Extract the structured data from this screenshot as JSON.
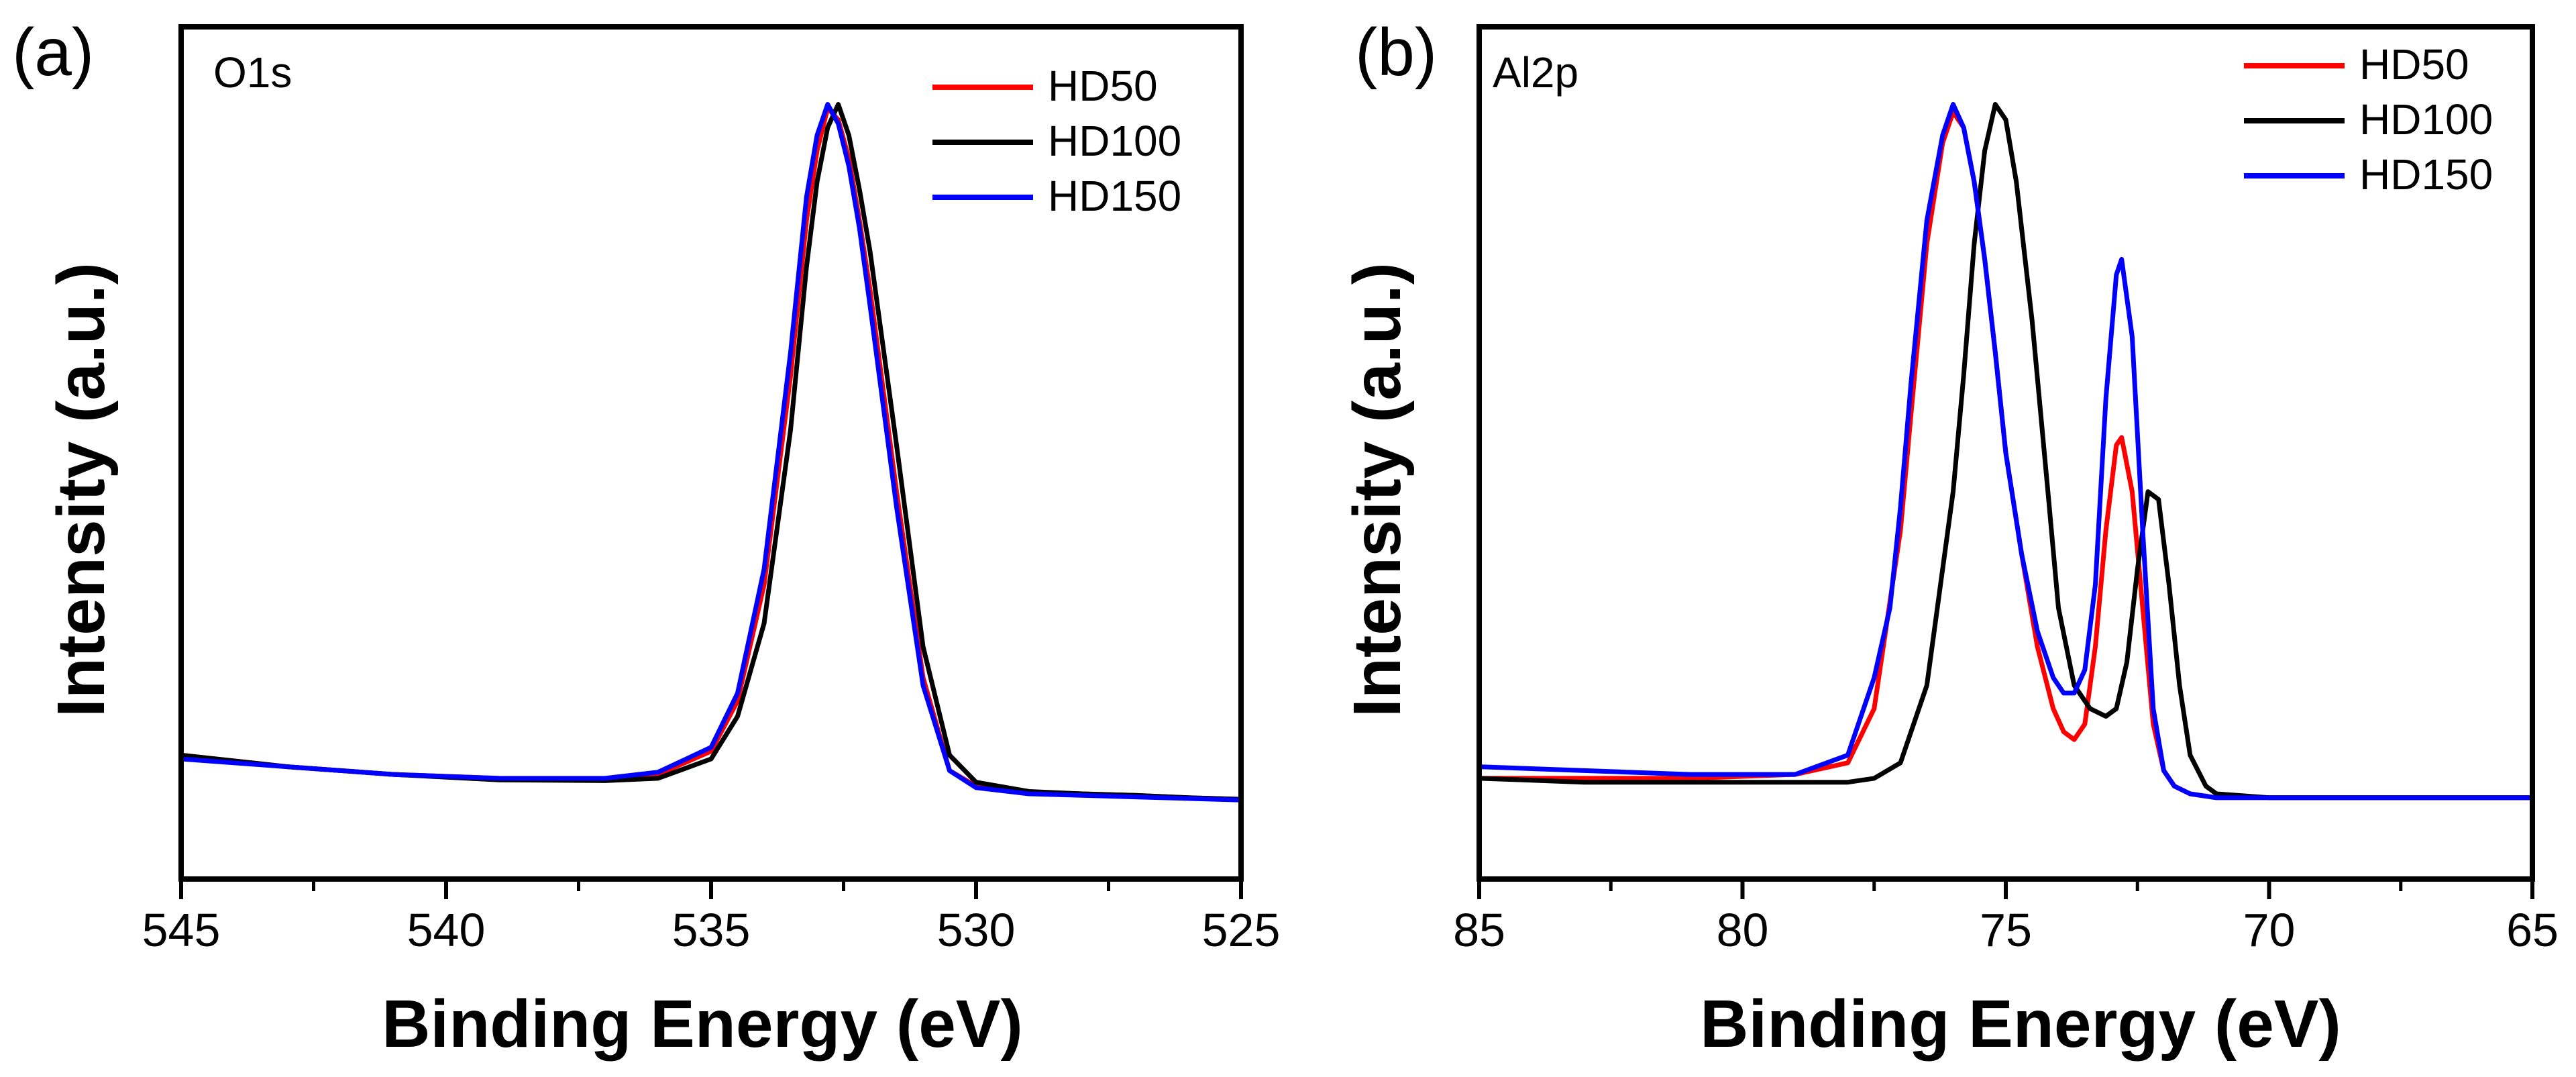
{
  "chart_data": [
    {
      "type": "line",
      "panel_label": "(a)",
      "peak_label": "O1s",
      "xlabel": "Binding Energy (eV)",
      "ylabel": "Intensity (a.u.)",
      "xlim": [
        545,
        525
      ],
      "x_reversed": true,
      "ylim": [
        0,
        1.1
      ],
      "x_ticks": [
        545,
        540,
        535,
        530,
        525
      ],
      "x_tick_labels": [
        "545",
        "540",
        "535",
        "530",
        "525"
      ],
      "y_ticks_shown": false,
      "grid": false,
      "legend_position": "top-right",
      "legend": [
        "HD50",
        "HD100",
        "HD150"
      ],
      "series": [
        {
          "name": "HD50",
          "color": "#ff0000",
          "x": [
            545,
            543,
            541,
            539,
            537,
            536,
            535,
            534.5,
            534,
            533.5,
            533.2,
            533,
            532.8,
            532.6,
            532.4,
            532.2,
            532,
            531.5,
            531,
            530.5,
            530,
            529,
            528,
            527,
            526,
            525
          ],
          "y": [
            0.16,
            0.145,
            0.135,
            0.13,
            0.128,
            0.135,
            0.165,
            0.23,
            0.38,
            0.65,
            0.85,
            0.94,
            0.995,
            0.98,
            0.93,
            0.85,
            0.76,
            0.5,
            0.26,
            0.14,
            0.12,
            0.112,
            0.11,
            0.108,
            0.105,
            0.103
          ]
        },
        {
          "name": "HD100",
          "color": "#000000",
          "x": [
            545,
            543,
            541,
            539,
            537,
            536,
            535,
            534.5,
            534,
            533.5,
            533.2,
            533,
            532.8,
            532.6,
            532.4,
            532.2,
            532,
            531.5,
            531,
            530.5,
            530,
            529,
            528,
            527,
            526,
            525
          ],
          "y": [
            0.16,
            0.145,
            0.135,
            0.128,
            0.127,
            0.13,
            0.155,
            0.21,
            0.33,
            0.58,
            0.79,
            0.9,
            0.97,
            1.0,
            0.96,
            0.89,
            0.81,
            0.56,
            0.3,
            0.16,
            0.125,
            0.113,
            0.11,
            0.108,
            0.105,
            0.103
          ]
        },
        {
          "name": "HD150",
          "color": "#0000ff",
          "x": [
            545,
            543,
            541,
            539,
            537,
            536,
            535,
            534.5,
            534,
            533.5,
            533.2,
            533,
            532.8,
            532.6,
            532.4,
            532.2,
            532,
            531.5,
            531,
            530.5,
            530,
            529,
            528,
            527,
            526,
            525
          ],
          "y": [
            0.155,
            0.145,
            0.135,
            0.13,
            0.13,
            0.138,
            0.17,
            0.24,
            0.4,
            0.68,
            0.88,
            0.96,
            1.0,
            0.975,
            0.92,
            0.84,
            0.74,
            0.48,
            0.25,
            0.14,
            0.118,
            0.11,
            0.108,
            0.106,
            0.104,
            0.102
          ]
        }
      ]
    },
    {
      "type": "line",
      "panel_label": "(b)",
      "peak_label": "Al2p",
      "xlabel": "Binding Energy (eV)",
      "ylabel": "Intensity (a.u.)",
      "xlim": [
        85,
        65
      ],
      "x_reversed": true,
      "ylim": [
        0,
        1.1
      ],
      "x_ticks": [
        85,
        80,
        75,
        70,
        65
      ],
      "x_tick_labels": [
        "85",
        "80",
        "75",
        "70",
        "65"
      ],
      "y_ticks_shown": false,
      "grid": false,
      "legend_position": "top-right",
      "legend": [
        "HD50",
        "HD100",
        "HD150"
      ],
      "series": [
        {
          "name": "HD50",
          "color": "#ff0000",
          "x": [
            85,
            83,
            81,
            79,
            78,
            77.5,
            77,
            76.8,
            76.5,
            76.2,
            76,
            75.8,
            75.6,
            75.4,
            75.2,
            75,
            74.7,
            74.4,
            74.1,
            73.9,
            73.7,
            73.5,
            73.3,
            73.1,
            72.9,
            72.8,
            72.6,
            72.4,
            72.2,
            72,
            71.8,
            71.5,
            71,
            70,
            69,
            67,
            65
          ],
          "y": [
            0.13,
            0.13,
            0.13,
            0.135,
            0.15,
            0.22,
            0.45,
            0.6,
            0.82,
            0.95,
            0.99,
            0.97,
            0.9,
            0.8,
            0.68,
            0.55,
            0.42,
            0.3,
            0.22,
            0.19,
            0.18,
            0.2,
            0.3,
            0.45,
            0.56,
            0.57,
            0.5,
            0.35,
            0.2,
            0.14,
            0.12,
            0.11,
            0.105,
            0.105,
            0.105,
            0.105,
            0.105
          ]
        },
        {
          "name": "HD100",
          "color": "#000000",
          "x": [
            85,
            83,
            81,
            79,
            78,
            77.5,
            77,
            76.5,
            76,
            75.8,
            75.6,
            75.4,
            75.2,
            75,
            74.8,
            74.5,
            74.2,
            74,
            73.7,
            73.4,
            73.1,
            72.9,
            72.7,
            72.5,
            72.3,
            72.1,
            71.9,
            71.7,
            71.5,
            71.2,
            71,
            70,
            69,
            67,
            65
          ],
          "y": [
            0.13,
            0.125,
            0.125,
            0.125,
            0.125,
            0.13,
            0.15,
            0.25,
            0.5,
            0.65,
            0.82,
            0.94,
            1.0,
            0.98,
            0.9,
            0.72,
            0.5,
            0.35,
            0.25,
            0.22,
            0.21,
            0.22,
            0.28,
            0.4,
            0.5,
            0.49,
            0.38,
            0.25,
            0.16,
            0.12,
            0.11,
            0.105,
            0.105,
            0.105,
            0.105
          ]
        },
        {
          "name": "HD150",
          "color": "#0000ff",
          "x": [
            85,
            83,
            81,
            79,
            78,
            77.5,
            77.2,
            77,
            76.8,
            76.5,
            76.2,
            76,
            75.8,
            75.6,
            75.4,
            75.2,
            75,
            74.7,
            74.4,
            74.1,
            73.9,
            73.7,
            73.5,
            73.3,
            73.1,
            72.9,
            72.8,
            72.6,
            72.4,
            72.2,
            72,
            71.8,
            71.5,
            71,
            70,
            69,
            67,
            65
          ],
          "y": [
            0.145,
            0.14,
            0.135,
            0.135,
            0.16,
            0.26,
            0.35,
            0.48,
            0.64,
            0.85,
            0.96,
            1.0,
            0.97,
            0.9,
            0.8,
            0.68,
            0.55,
            0.42,
            0.32,
            0.26,
            0.24,
            0.24,
            0.27,
            0.38,
            0.62,
            0.78,
            0.8,
            0.7,
            0.45,
            0.22,
            0.14,
            0.12,
            0.11,
            0.105,
            0.105,
            0.105,
            0.105,
            0.105
          ]
        }
      ]
    }
  ]
}
